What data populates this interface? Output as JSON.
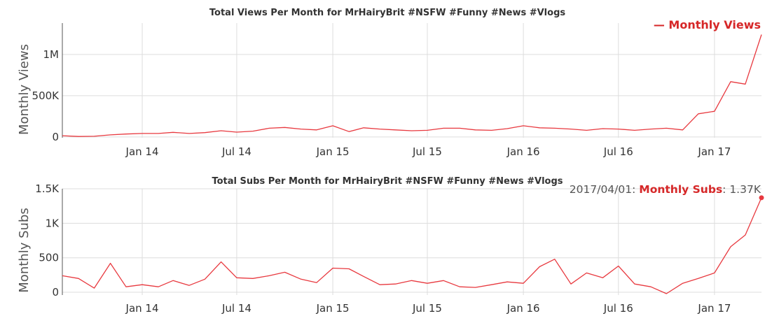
{
  "colors": {
    "series": "#e8393f",
    "legend_text": "#d62728",
    "grid": "#dddddd",
    "axis": "#555555",
    "text": "#333333"
  },
  "chart_data": [
    {
      "type": "line",
      "title": "Total Views Per Month for MrHairyBrit #NSFW #Funny #News #Vlogs",
      "xlabel": "",
      "ylabel": "Monthly Views",
      "x_ticks": [
        "Jan 14",
        "Jul 14",
        "Jan 15",
        "Jul 15",
        "Jan 16",
        "Jul 16",
        "Jan 17"
      ],
      "y_ticks": [
        "0",
        "500K",
        "1M"
      ],
      "y_tick_values": [
        0,
        500000,
        1000000
      ],
      "ylim": [
        -10000,
        1380000
      ],
      "xlim": [
        "2013-08-01",
        "2017-04-01"
      ],
      "legend": {
        "position": "top-right",
        "label": "— Monthly Views"
      },
      "grid": true,
      "series": [
        {
          "name": "Monthly Views",
          "x": [
            "2013-08-01",
            "2013-09-01",
            "2013-10-01",
            "2013-11-01",
            "2013-12-01",
            "2014-01-01",
            "2014-02-01",
            "2014-03-01",
            "2014-04-01",
            "2014-05-01",
            "2014-06-01",
            "2014-07-01",
            "2014-08-01",
            "2014-09-01",
            "2014-10-01",
            "2014-11-01",
            "2014-12-01",
            "2015-01-01",
            "2015-02-01",
            "2015-03-01",
            "2015-04-01",
            "2015-05-01",
            "2015-06-01",
            "2015-07-01",
            "2015-08-01",
            "2015-09-01",
            "2015-10-01",
            "2015-11-01",
            "2015-12-01",
            "2016-01-01",
            "2016-02-01",
            "2016-03-01",
            "2016-04-01",
            "2016-05-01",
            "2016-06-01",
            "2016-07-01",
            "2016-08-01",
            "2016-09-01",
            "2016-10-01",
            "2016-11-01",
            "2016-12-01",
            "2017-01-01",
            "2017-02-01",
            "2017-03-01",
            "2017-04-01"
          ],
          "values": [
            15000,
            5000,
            8000,
            25000,
            35000,
            42000,
            42000,
            55000,
            42000,
            52000,
            75000,
            58000,
            70000,
            105000,
            115000,
            95000,
            85000,
            135000,
            65000,
            110000,
            95000,
            85000,
            75000,
            80000,
            105000,
            105000,
            85000,
            80000,
            100000,
            135000,
            110000,
            105000,
            95000,
            80000,
            100000,
            95000,
            80000,
            95000,
            105000,
            85000,
            280000,
            310000,
            670000,
            640000,
            1240000
          ]
        }
      ]
    },
    {
      "type": "line",
      "title": "Total Subs Per Month for MrHairyBrit #NSFW #Funny #News #Vlogs",
      "xlabel": "",
      "ylabel": "Monthly Subs",
      "x_ticks": [
        "Jan 14",
        "Jul 14",
        "Jan 15",
        "Jul 15",
        "Jan 16",
        "Jul 16",
        "Jan 17"
      ],
      "y_ticks": [
        "0",
        "500",
        "1K",
        "1.5K"
      ],
      "y_tick_values": [
        0,
        500,
        1000,
        1500
      ],
      "ylim": [
        -40,
        1500
      ],
      "xlim": [
        "2013-08-01",
        "2017-04-01"
      ],
      "hover_label": {
        "date": "2017/04/01: ",
        "series": "Monthly Subs",
        "value": ": 1.37K"
      },
      "grid": true,
      "series": [
        {
          "name": "Monthly Subs",
          "x": [
            "2013-08-01",
            "2013-09-01",
            "2013-10-01",
            "2013-11-01",
            "2013-12-01",
            "2014-01-01",
            "2014-02-01",
            "2014-03-01",
            "2014-04-01",
            "2014-05-01",
            "2014-06-01",
            "2014-07-01",
            "2014-08-01",
            "2014-09-01",
            "2014-10-01",
            "2014-11-01",
            "2014-12-01",
            "2015-01-01",
            "2015-02-01",
            "2015-03-01",
            "2015-04-01",
            "2015-05-01",
            "2015-06-01",
            "2015-07-01",
            "2015-08-01",
            "2015-09-01",
            "2015-10-01",
            "2015-11-01",
            "2015-12-01",
            "2016-01-01",
            "2016-02-01",
            "2016-03-01",
            "2016-04-01",
            "2016-05-01",
            "2016-06-01",
            "2016-07-01",
            "2016-08-01",
            "2016-09-01",
            "2016-10-01",
            "2016-11-01",
            "2016-12-01",
            "2017-01-01",
            "2017-02-01",
            "2017-03-01",
            "2017-04-01"
          ],
          "values": [
            240,
            200,
            60,
            420,
            80,
            110,
            80,
            170,
            100,
            190,
            440,
            210,
            200,
            240,
            290,
            190,
            140,
            350,
            340,
            230,
            110,
            120,
            170,
            130,
            170,
            80,
            70,
            110,
            150,
            130,
            370,
            480,
            120,
            280,
            210,
            380,
            120,
            80,
            -20,
            130,
            200,
            280,
            660,
            830,
            1370
          ]
        }
      ]
    }
  ]
}
